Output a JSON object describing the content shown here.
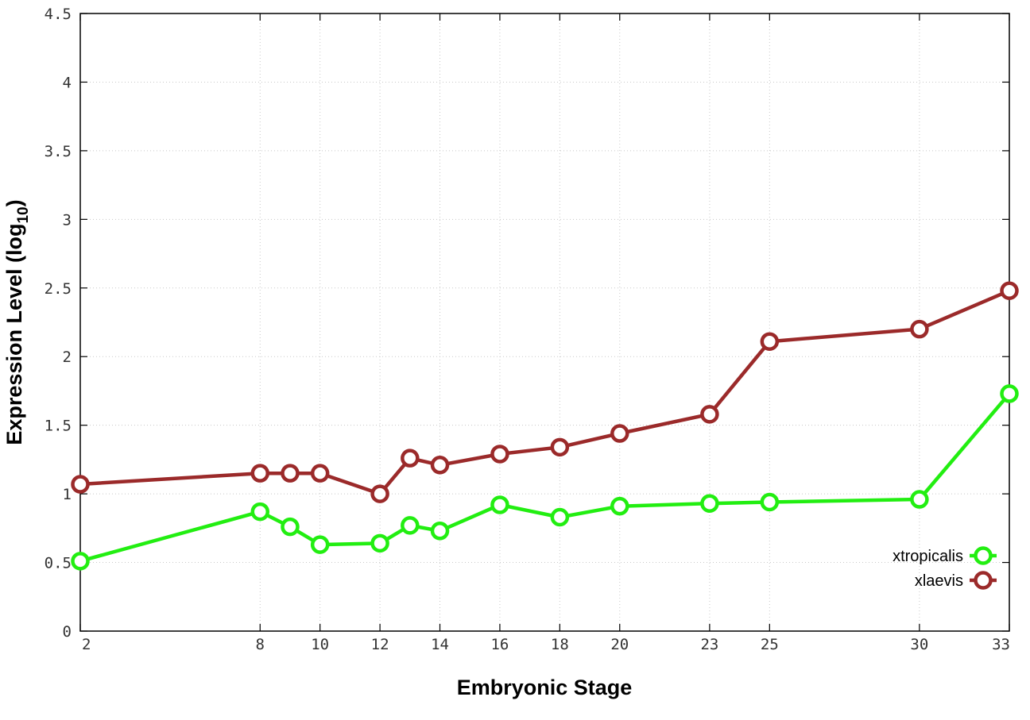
{
  "chart_data": {
    "type": "line",
    "xlabel": "Embryonic Stage",
    "ylabel_main": "Expression Level (log",
    "ylabel_sub": "10",
    "ylabel_close": ")",
    "xlim": [
      2,
      33
    ],
    "ylim": [
      0,
      4.5
    ],
    "xticks": [
      2,
      8,
      10,
      12,
      14,
      16,
      18,
      20,
      23,
      25,
      30,
      33
    ],
    "yticks": [
      0,
      0.5,
      1,
      1.5,
      2,
      2.5,
      3,
      3.5,
      4,
      4.5
    ],
    "ytick_labels": [
      "0",
      "0.5",
      "1",
      "1.5",
      "2",
      "2.5",
      "3",
      "3.5",
      "4",
      "4.5"
    ],
    "grid": true,
    "legend_position": "bottom-right",
    "x": [
      2,
      8,
      9,
      10,
      12,
      13,
      14,
      16,
      18,
      20,
      23,
      25,
      30,
      33
    ],
    "series": [
      {
        "name": "xtropicalis",
        "color": "#22ee11",
        "values": [
          0.51,
          0.87,
          0.76,
          0.63,
          0.64,
          0.77,
          0.73,
          0.92,
          0.83,
          0.91,
          0.93,
          0.94,
          0.96,
          1.73
        ]
      },
      {
        "name": "xlaevis",
        "color": "#9b2a2a",
        "values": [
          1.07,
          1.15,
          1.15,
          1.15,
          1.0,
          1.26,
          1.21,
          1.29,
          1.34,
          1.44,
          1.58,
          2.11,
          2.2,
          2.48
        ]
      }
    ]
  }
}
